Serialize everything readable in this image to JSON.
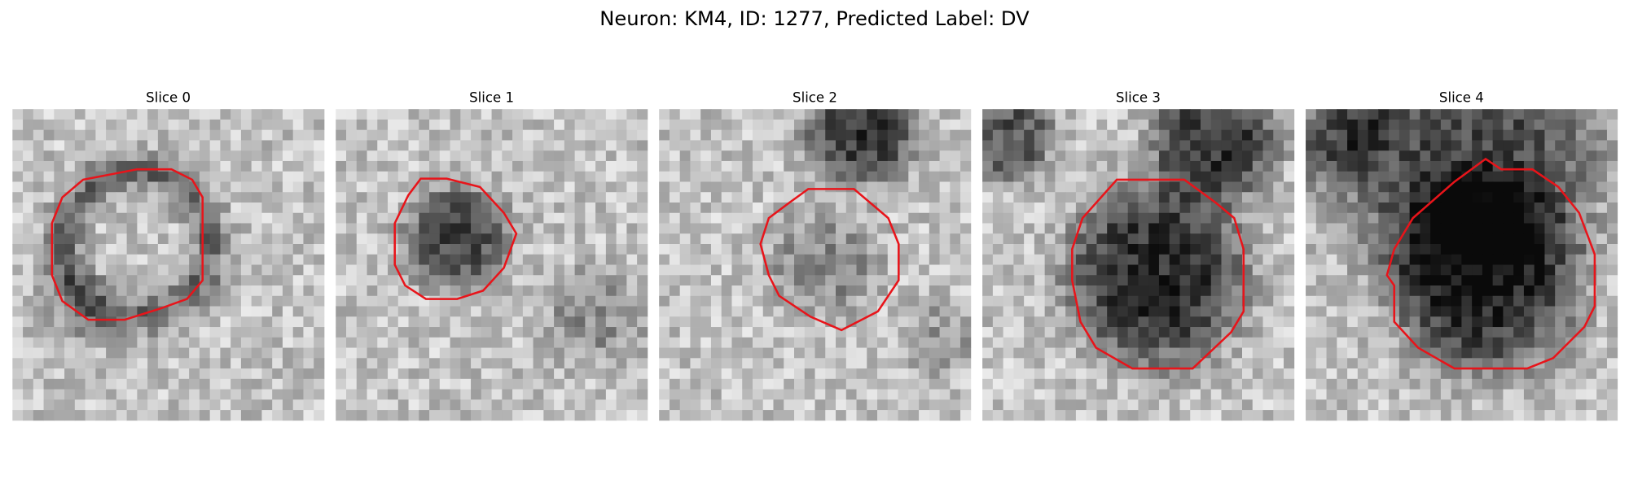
{
  "header": {
    "title": "Neuron: KM4, ID: 1277, Predicted Label: DV"
  },
  "panels": [
    {
      "title": "Slice 0"
    },
    {
      "title": "Slice 1"
    },
    {
      "title": "Slice 2"
    },
    {
      "title": "Slice 3"
    },
    {
      "title": "Slice 4"
    }
  ]
}
